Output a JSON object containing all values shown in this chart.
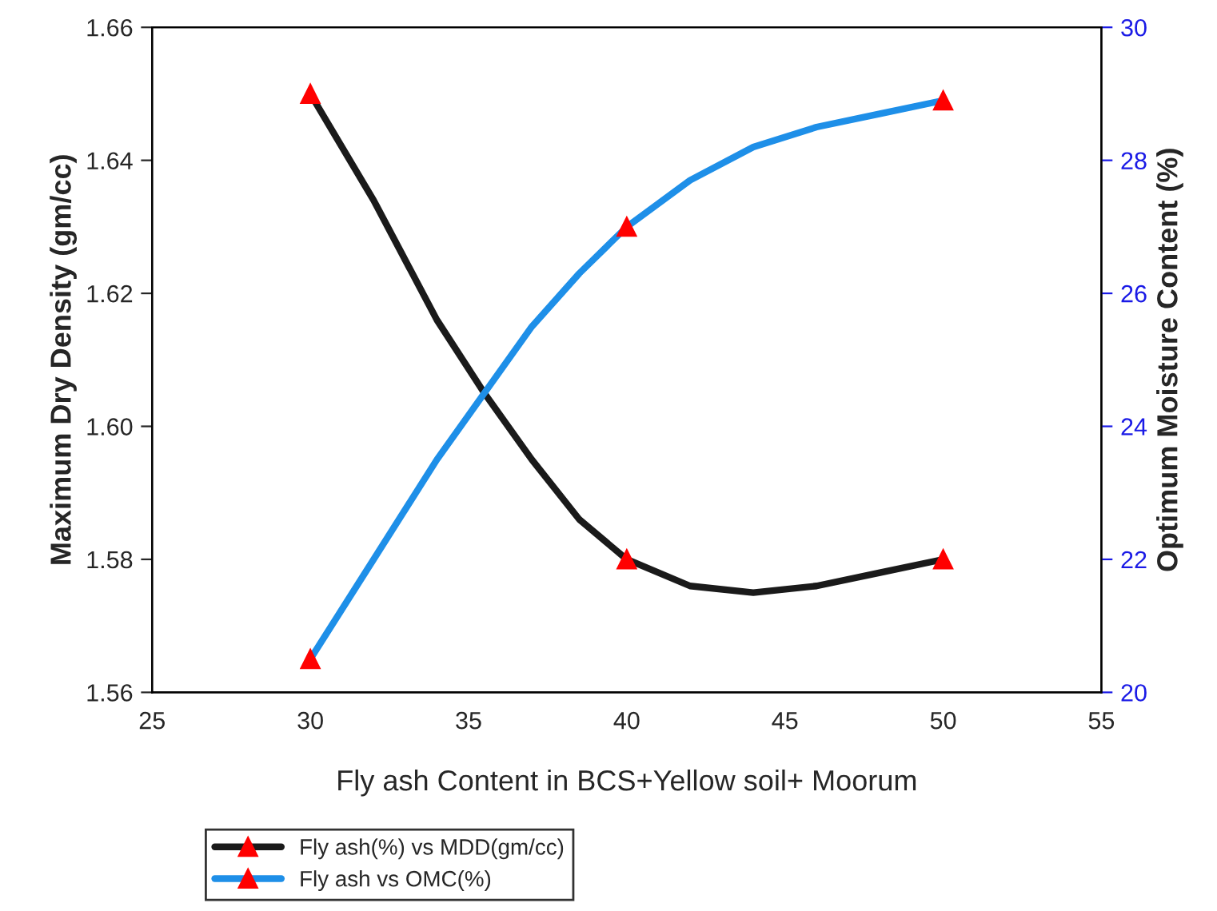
{
  "chart_data": {
    "type": "line",
    "xlabel": "Fly ash Content in BCS+Yellow soil+ Moorum",
    "ylabel": "Maximum Dry Density (gm/cc)",
    "y2label": "Optimum Moisture Content (%)",
    "series": [
      {
        "name": "Fly ash(%) vs MDD(gm/cc)",
        "color": "#1a1a1a",
        "x": [
          30,
          32,
          34,
          35.5,
          37,
          38.5,
          40,
          42,
          44,
          46,
          48,
          50
        ],
        "values": [
          1.65,
          1.634,
          1.616,
          1.605,
          1.595,
          1.586,
          1.58,
          1.576,
          1.575,
          1.576,
          1.578,
          1.58
        ],
        "marker": "none"
      },
      {
        "name": "Fly ash vs OMC(%)",
        "color": "#1e8fe8",
        "x": [
          30,
          32,
          34,
          35.5,
          37,
          38.5,
          40,
          42,
          44,
          46,
          48,
          50
        ],
        "values": [
          20.5,
          22.0,
          23.5,
          24.5,
          25.5,
          26.3,
          27.0,
          27.7,
          28.2,
          28.5,
          28.7,
          28.9
        ],
        "axis": "y2",
        "marker": "none"
      },
      {
        "type": "scatter",
        "color": "#ff0000",
        "x": [
          30,
          40,
          50
        ],
        "values": [
          1.65,
          1.58,
          1.58
        ],
        "marker": "triangle"
      },
      {
        "type": "scatter",
        "color": "#ff0000",
        "x": [
          30,
          40,
          50
        ],
        "values": [
          20.5,
          27.0,
          28.9
        ],
        "axis": "y2",
        "marker": "triangle"
      }
    ],
    "xlim": [
      25,
      55
    ],
    "xticks": [
      25,
      30,
      35,
      40,
      45,
      50,
      55
    ],
    "ylim": [
      1.56,
      1.66
    ],
    "yticks": [
      {
        "value": 1.56,
        "label": "1.56"
      },
      {
        "value": 1.58,
        "label": "1.58"
      },
      {
        "value": 1.6,
        "label": "1.60"
      },
      {
        "value": 1.62,
        "label": "1.62"
      },
      {
        "value": 1.64,
        "label": "1.64"
      },
      {
        "value": 1.66,
        "label": "1.66"
      }
    ],
    "y2lim": [
      20,
      30
    ],
    "y2ticks": [
      20,
      22,
      24,
      26,
      28,
      30
    ],
    "grid": false,
    "legend": "bottom left"
  }
}
